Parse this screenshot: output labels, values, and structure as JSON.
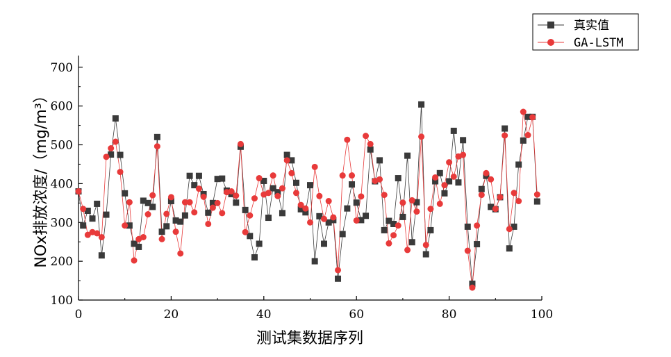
{
  "chart_data": {
    "type": "line",
    "title": "",
    "xlabel": "测试集数据序列",
    "ylabel": "NOx排放浓度/（mg/m³）",
    "xlim": [
      0,
      100
    ],
    "ylim": [
      100,
      730
    ],
    "x_ticks": [
      "0",
      "20",
      "40",
      "60",
      "80",
      "100"
    ],
    "y_ticks": [
      "100",
      "200",
      "300",
      "400",
      "500",
      "600",
      "700"
    ],
    "legend_position": "top-right",
    "series": [
      {
        "name": "真实值",
        "color": "#3a3a3a",
        "marker": "square",
        "values": [
          380,
          292,
          330,
          310,
          348,
          215,
          320,
          475,
          568,
          474,
          375,
          292,
          245,
          237,
          356,
          350,
          340,
          520,
          276,
          290,
          355,
          305,
          302,
          318,
          420,
          396,
          420,
          373,
          325,
          350,
          412,
          413,
          382,
          373,
          351,
          495,
          332,
          265,
          210,
          245,
          407,
          312,
          388,
          378,
          324,
          474,
          460,
          402,
          334,
          326,
          396,
          200,
          316,
          245,
          300,
          306,
          155,
          270,
          336,
          398,
          351,
          306,
          317,
          488,
          406,
          460,
          280,
          304,
          296,
          414,
          314,
          472,
          249,
          352,
          604,
          218,
          280,
          406,
          427,
          375,
          406,
          536,
          403,
          512,
          289,
          142,
          244,
          386,
          420,
          340,
          334,
          365,
          542,
          233,
          289,
          449,
          511,
          572,
          572,
          354
        ]
      },
      {
        "name": "GA-LSTM",
        "color": "#e83a3a",
        "marker": "circle",
        "values": [
          380,
          335,
          268,
          275,
          272,
          262,
          469,
          491,
          508,
          430,
          292,
          352,
          202,
          257,
          262,
          321,
          370,
          496,
          257,
          322,
          365,
          276,
          220,
          352,
          352,
          326,
          387,
          366,
          296,
          338,
          350,
          324,
          378,
          380,
          369,
          502,
          275,
          318,
          362,
          414,
          372,
          376,
          421,
          368,
          388,
          460,
          427,
          376,
          345,
          336,
          300,
          443,
          368,
          309,
          355,
          313,
          177,
          421,
          513,
          421,
          305,
          367,
          523,
          502,
          407,
          411,
          371,
          246,
          267,
          292,
          351,
          229,
          357,
          328,
          521,
          242,
          335,
          416,
          348,
          396,
          455,
          418,
          470,
          474,
          227,
          132,
          292,
          371,
          427,
          411,
          335,
          365,
          524,
          283,
          376,
          355,
          585,
          525,
          571,
          372
        ]
      }
    ]
  }
}
